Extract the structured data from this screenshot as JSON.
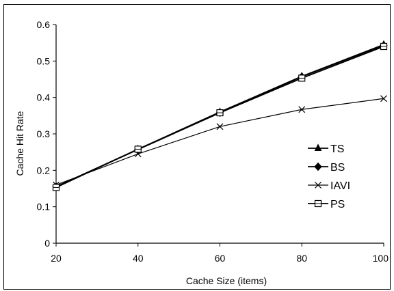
{
  "chart_data": {
    "type": "line",
    "xlabel": "Cache Size (items)",
    "ylabel": "Cache Hit Rate",
    "x": [
      20,
      40,
      60,
      80,
      100
    ],
    "xlim": [
      20,
      100
    ],
    "ylim": [
      0,
      0.6
    ],
    "xticks": [
      "20",
      "40",
      "60",
      "80",
      "100"
    ],
    "yticks": [
      "0",
      "0.1",
      "0.2",
      "0.3",
      "0.4",
      "0.5",
      "0.6"
    ],
    "grid": false,
    "legend_position": "right",
    "series": [
      {
        "name": "TS",
        "marker": "triangle",
        "values": [
          0.155,
          0.258,
          0.36,
          0.458,
          0.545
        ]
      },
      {
        "name": "BS",
        "marker": "diamond",
        "values": [
          0.155,
          0.257,
          0.358,
          0.457,
          0.543
        ]
      },
      {
        "name": "IAVI",
        "marker": "x",
        "values": [
          0.16,
          0.245,
          0.32,
          0.367,
          0.397
        ]
      },
      {
        "name": "PS",
        "marker": "square-open",
        "values": [
          0.153,
          0.258,
          0.358,
          0.453,
          0.54
        ]
      }
    ],
    "colors": {
      "line": "#000000",
      "background": "#ffffff"
    }
  }
}
